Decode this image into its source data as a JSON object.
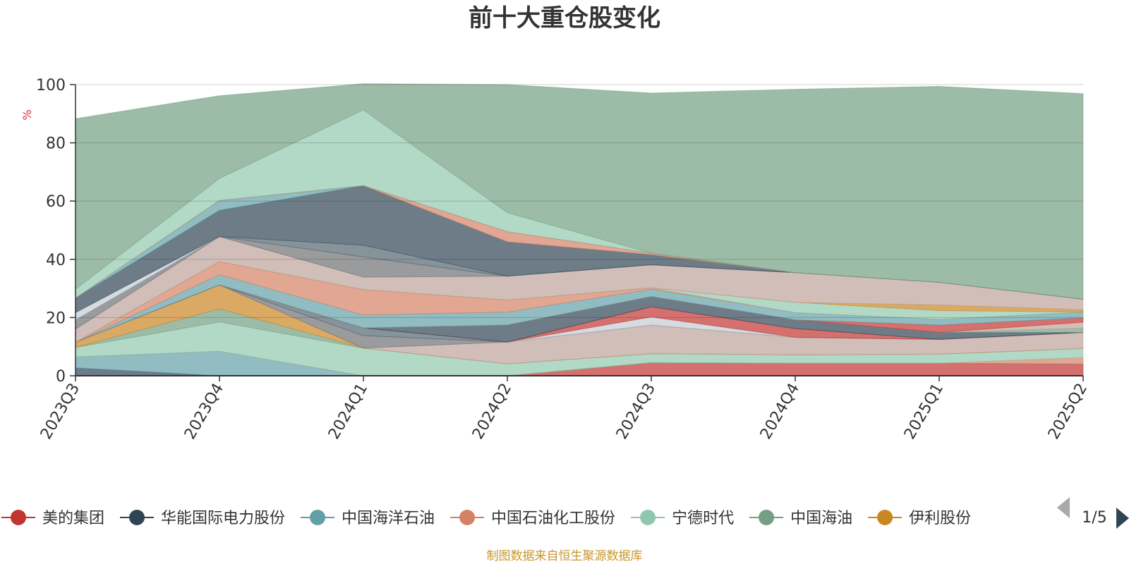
{
  "chart_data": {
    "type": "area",
    "title": "前十大重仓股变化",
    "ylabel": "%",
    "ylim": [
      0,
      100
    ],
    "yticks": [
      "0",
      "20",
      "40",
      "60",
      "80",
      "100"
    ],
    "grid": true,
    "legend_placement": "bottom",
    "categories": [
      "2023Q3",
      "2023Q4",
      "2024Q1",
      "2024Q2",
      "2024Q3",
      "2024Q4",
      "2025Q1",
      "2025Q2"
    ],
    "series": [
      {
        "name": "美的集团",
        "color": "#c23531",
        "values": [
          0,
          0,
          0,
          0,
          4.5,
          4.3,
          4.3,
          4.0
        ]
      },
      {
        "name": "华能国际电力股份",
        "color": "#2f4554",
        "values": [
          2.7,
          0,
          0,
          0,
          0,
          0,
          0,
          0
        ]
      },
      {
        "name": "中国海洋石油",
        "color": "#61a0a8",
        "values": [
          3.8,
          8.4,
          0,
          0,
          0,
          0,
          0,
          0
        ]
      },
      {
        "name": "中国石油化工股份",
        "color": "#d48265",
        "values": [
          0,
          0,
          0,
          0,
          0,
          0,
          0,
          2.3
        ]
      },
      {
        "name": "宁德时代",
        "color": "#91c7ae",
        "values": [
          3.2,
          10.1,
          9.5,
          4.1,
          3.1,
          2.9,
          3.1,
          3.1
        ]
      },
      {
        "name": "中国海油",
        "color": "#749f83",
        "values": [
          0,
          4.5,
          0,
          0,
          0,
          0,
          0,
          0
        ]
      },
      {
        "name": "伊利股份",
        "color": "#ca8622",
        "values": [
          1.8,
          8.2,
          0,
          0,
          0,
          0,
          0,
          0
        ]
      }
    ],
    "other_layers": [
      {
        "color": "#bda29a",
        "values": [
          0,
          0,
          0,
          7.5,
          9.8,
          6.0,
          5.1,
          5.5
        ]
      },
      {
        "color": "#6e7074",
        "values": [
          0,
          0,
          4.3,
          0,
          0,
          0,
          0,
          0
        ]
      },
      {
        "color": "#546570",
        "values": [
          0,
          0,
          2.6,
          0,
          0,
          0,
          0,
          0
        ]
      },
      {
        "color": "#c4ccd3",
        "values": [
          0,
          0,
          0,
          0,
          2.8,
          0,
          0,
          0
        ]
      },
      {
        "color": "#c23531",
        "values": [
          0,
          0,
          0,
          0,
          3.5,
          3.0,
          0,
          0
        ]
      },
      {
        "color": "#2f4554",
        "values": [
          0,
          0,
          0,
          5.8,
          3.5,
          3.0,
          2.4,
          0
        ]
      },
      {
        "color": "#749f83",
        "values": [
          0,
          0,
          0,
          0,
          0,
          0,
          0,
          1.5
        ]
      },
      {
        "color": "#bda29a",
        "values": [
          0,
          0,
          0,
          0,
          0,
          0,
          0,
          2.0
        ]
      },
      {
        "color": "#c23531",
        "values": [
          0,
          0,
          0,
          0,
          0,
          0,
          2.5,
          1.5
        ]
      },
      {
        "color": "#61a0a8",
        "values": [
          0,
          3.5,
          4.5,
          4.5,
          2.5,
          2.5,
          2.0,
          2.0
        ]
      },
      {
        "color": "#d48265",
        "values": [
          0,
          4.5,
          8.7,
          4.1,
          0.5,
          0,
          0,
          0
        ]
      },
      {
        "color": "#91c7ae",
        "values": [
          0,
          0,
          0,
          0,
          0,
          3.5,
          3.0,
          0
        ]
      },
      {
        "color": "#ca8622",
        "values": [
          0,
          0,
          0,
          0,
          0,
          0,
          1.9,
          0.8
        ]
      },
      {
        "color": "#bda29a",
        "values": [
          4.5,
          8.6,
          4.3,
          8.2,
          7.9,
          10.2,
          7.8,
          3.6
        ]
      },
      {
        "color": "#6e7074",
        "values": [
          3.2,
          0,
          6.9,
          0,
          0,
          0,
          0,
          0
        ]
      },
      {
        "color": "#546570",
        "values": [
          0,
          0,
          4.0,
          0,
          0,
          0,
          0,
          0
        ]
      },
      {
        "color": "#c4ccd3",
        "values": [
          2.5,
          0,
          0,
          0,
          0,
          0,
          0,
          0
        ]
      },
      {
        "color": "#2f4554",
        "values": [
          5.0,
          9.0,
          20.5,
          11.8,
          3.5,
          0,
          0,
          0
        ]
      },
      {
        "color": "#61a0a8",
        "values": [
          0,
          3.4,
          0,
          0,
          0,
          0,
          0,
          0
        ]
      },
      {
        "color": "#d48265",
        "values": [
          0,
          0,
          0,
          3.5,
          0.5,
          0,
          0,
          0
        ]
      },
      {
        "color": "#c23531",
        "values": [
          0,
          0,
          0,
          0,
          0,
          0,
          0,
          0
        ]
      },
      {
        "color": "#91c7ae",
        "values": [
          3.0,
          7.6,
          26.0,
          6.5,
          0,
          0,
          0,
          0
        ]
      },
      {
        "color": "#749f83",
        "values": [
          58.6,
          28.4,
          9.0,
          44.0,
          55.0,
          63.0,
          67.3,
          70.6
        ]
      }
    ]
  },
  "legend": {
    "items": [
      {
        "label": "美的集团",
        "color": "#c23531"
      },
      {
        "label": "华能国际电力股份",
        "color": "#2f4554"
      },
      {
        "label": "中国海洋石油",
        "color": "#61a0a8"
      },
      {
        "label": "中国石油化工股份",
        "color": "#d48265"
      },
      {
        "label": "宁德时代",
        "color": "#91c7ae"
      },
      {
        "label": "中国海油",
        "color": "#749f83"
      },
      {
        "label": "伊利股份",
        "color": "#ca8622"
      }
    ],
    "page": "1/5",
    "prev_icon": "triangle-left-icon",
    "next_icon": "triangle-right-icon"
  },
  "footer": {
    "source": "制图数据来自恒生聚源数据库",
    "source_color": "#c8962e"
  },
  "colors": {
    "unit_label": "#e03030",
    "text": "#333333"
  }
}
